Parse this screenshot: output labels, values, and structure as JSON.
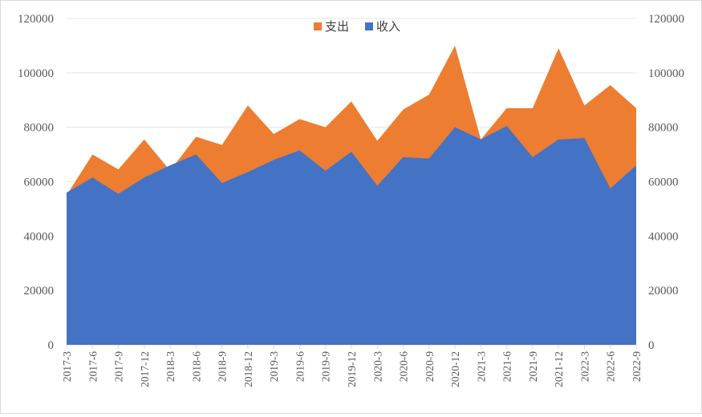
{
  "chart_data": {
    "type": "area",
    "stacked": false,
    "categories": [
      "2017-3",
      "2017-6",
      "2017-9",
      "2017-12",
      "2018-3",
      "2018-6",
      "2018-9",
      "2018-12",
      "2019-3",
      "2019-6",
      "2019-9",
      "2019-12",
      "2020-3",
      "2020-6",
      "2020-9",
      "2020-12",
      "2021-3",
      "2021-6",
      "2021-9",
      "2021-12",
      "2022-3",
      "2022-6",
      "2022-9"
    ],
    "series": [
      {
        "name": "支出",
        "color": "#ED7D31",
        "values": [
          55000,
          70000,
          64500,
          75500,
          64000,
          76500,
          73500,
          88000,
          77500,
          83000,
          80000,
          89500,
          75000,
          86500,
          92000,
          110000,
          75500,
          87000,
          87000,
          109000,
          88000,
          95500,
          87000
        ]
      },
      {
        "name": "收入",
        "color": "#4472C4",
        "values": [
          56000,
          61500,
          55500,
          61500,
          66000,
          70000,
          59500,
          63500,
          68000,
          71500,
          64000,
          71000,
          58500,
          69000,
          68500,
          80000,
          75500,
          80500,
          69000,
          75500,
          76000,
          57500,
          66000
        ]
      }
    ],
    "ylim": [
      0,
      120000
    ],
    "yticks": [
      "0",
      "20000",
      "40000",
      "60000",
      "80000",
      "100000",
      "120000"
    ],
    "secondary_yticks": [
      "0",
      "20000",
      "40000",
      "60000",
      "80000",
      "100000",
      "120000"
    ],
    "grid": true,
    "legend_position": "top-center"
  }
}
